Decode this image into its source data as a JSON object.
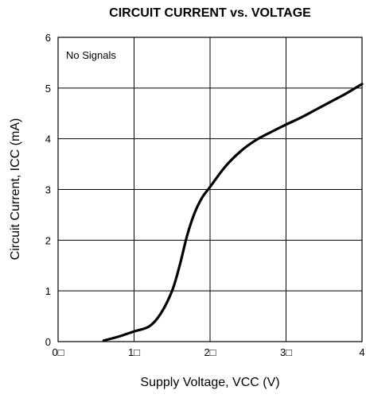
{
  "chart_data": {
    "type": "line",
    "title": "CIRCUIT CURRENT vs. VOLTAGE",
    "xlabel": "Supply Voltage, VCC (V)",
    "ylabel": "Circuit Current, ICC (mA)",
    "annotation": "No Signals",
    "xlim": [
      0,
      4
    ],
    "ylim": [
      0,
      6
    ],
    "x_ticks": [
      0,
      1,
      2,
      3,
      4
    ],
    "x_tick_labels": [
      "0□",
      "1□",
      "2□",
      "3□",
      "4"
    ],
    "y_ticks": [
      0,
      1,
      2,
      3,
      4,
      5,
      6
    ],
    "y_tick_labels": [
      "0",
      "1",
      "2",
      "3",
      "4",
      "5",
      "6"
    ],
    "grid": true,
    "series": [
      {
        "x": [
          0.6,
          0.8,
          1.0,
          1.2,
          1.35,
          1.5,
          1.6,
          1.7,
          1.8,
          1.9,
          2.0,
          2.2,
          2.4,
          2.6,
          2.8,
          3.0,
          3.2,
          3.4,
          3.6,
          3.8,
          4.0
        ],
        "y": [
          0.02,
          0.1,
          0.2,
          0.3,
          0.55,
          1.0,
          1.5,
          2.1,
          2.55,
          2.85,
          3.05,
          3.45,
          3.75,
          3.97,
          4.13,
          4.28,
          4.42,
          4.58,
          4.74,
          4.9,
          5.08
        ]
      }
    ]
  }
}
